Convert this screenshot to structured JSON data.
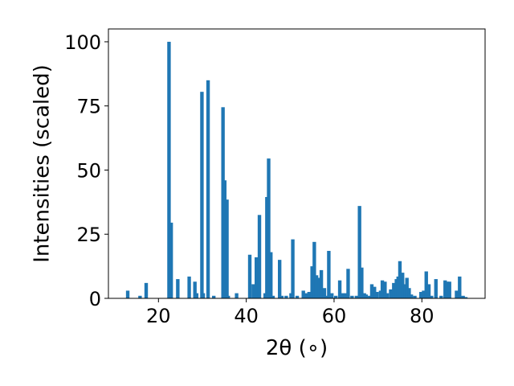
{
  "chart_data": {
    "type": "bar",
    "title": "",
    "xlabel": "2θ (∘)",
    "ylabel": "Intensities (scaled)",
    "xlim": [
      8.6,
      94.4
    ],
    "ylim": [
      0,
      105
    ],
    "bar_width": 0.8,
    "bar_color": "#1f77b4",
    "grid": false,
    "xticks": [
      20,
      40,
      60,
      80
    ],
    "yticks": [
      0,
      25,
      50,
      75,
      100
    ],
    "x": [
      13.0,
      15.8,
      17.2,
      22.4,
      22.9,
      24.4,
      27.0,
      28.3,
      28.7,
      29.9,
      30.2,
      31.3,
      32.6,
      34.7,
      35.1,
      35.6,
      35.9,
      37.8,
      40.8,
      41.6,
      42.3,
      43.0,
      44.3,
      44.7,
      45.1,
      45.6,
      46.1,
      47.6,
      48.1,
      49.1,
      50.2,
      50.6,
      51.6,
      53.0,
      53.6,
      54.3,
      55.0,
      55.5,
      56.0,
      56.6,
      57.1,
      57.8,
      58.2,
      58.8,
      59.5,
      60.4,
      61.3,
      61.9,
      62.6,
      63.2,
      64.1,
      65.1,
      65.8,
      66.3,
      66.9,
      67.3,
      68.1,
      68.6,
      69.2,
      69.8,
      70.6,
      71.0,
      71.6,
      72.1,
      72.9,
      73.6,
      74.2,
      74.6,
      75.0,
      75.6,
      76.2,
      76.6,
      77.1,
      77.6,
      78.4,
      79.8,
      80.4,
      81.0,
      81.6,
      82.2,
      83.2,
      84.4,
      85.3,
      85.8,
      86.3,
      87.9,
      88.6,
      89.4,
      90.0
    ],
    "values": [
      3,
      1,
      6,
      100,
      29.5,
      7.5,
      8.5,
      6.5,
      2,
      80.5,
      2,
      85,
      1,
      74.5,
      46,
      38.5,
      1,
      2,
      17,
      5.5,
      16,
      32.5,
      2,
      39.5,
      54.5,
      18,
      1,
      15,
      1,
      1,
      2,
      23,
      1,
      3,
      2,
      2.5,
      12.5,
      22,
      9,
      8,
      11,
      4,
      1,
      18.5,
      2,
      1,
      7,
      2,
      2,
      11.5,
      1,
      1,
      36,
      12,
      2,
      1.5,
      1,
      5.5,
      4.5,
      2.5,
      3,
      7,
      6.5,
      2,
      3.5,
      6,
      7.5,
      8.5,
      14.5,
      10,
      5.5,
      8,
      4,
      1.5,
      1,
      2.5,
      3,
      10.5,
      5.5,
      1,
      7.5,
      1,
      7,
      6.5,
      6.5,
      3,
      8.5,
      1,
      0.5
    ]
  }
}
